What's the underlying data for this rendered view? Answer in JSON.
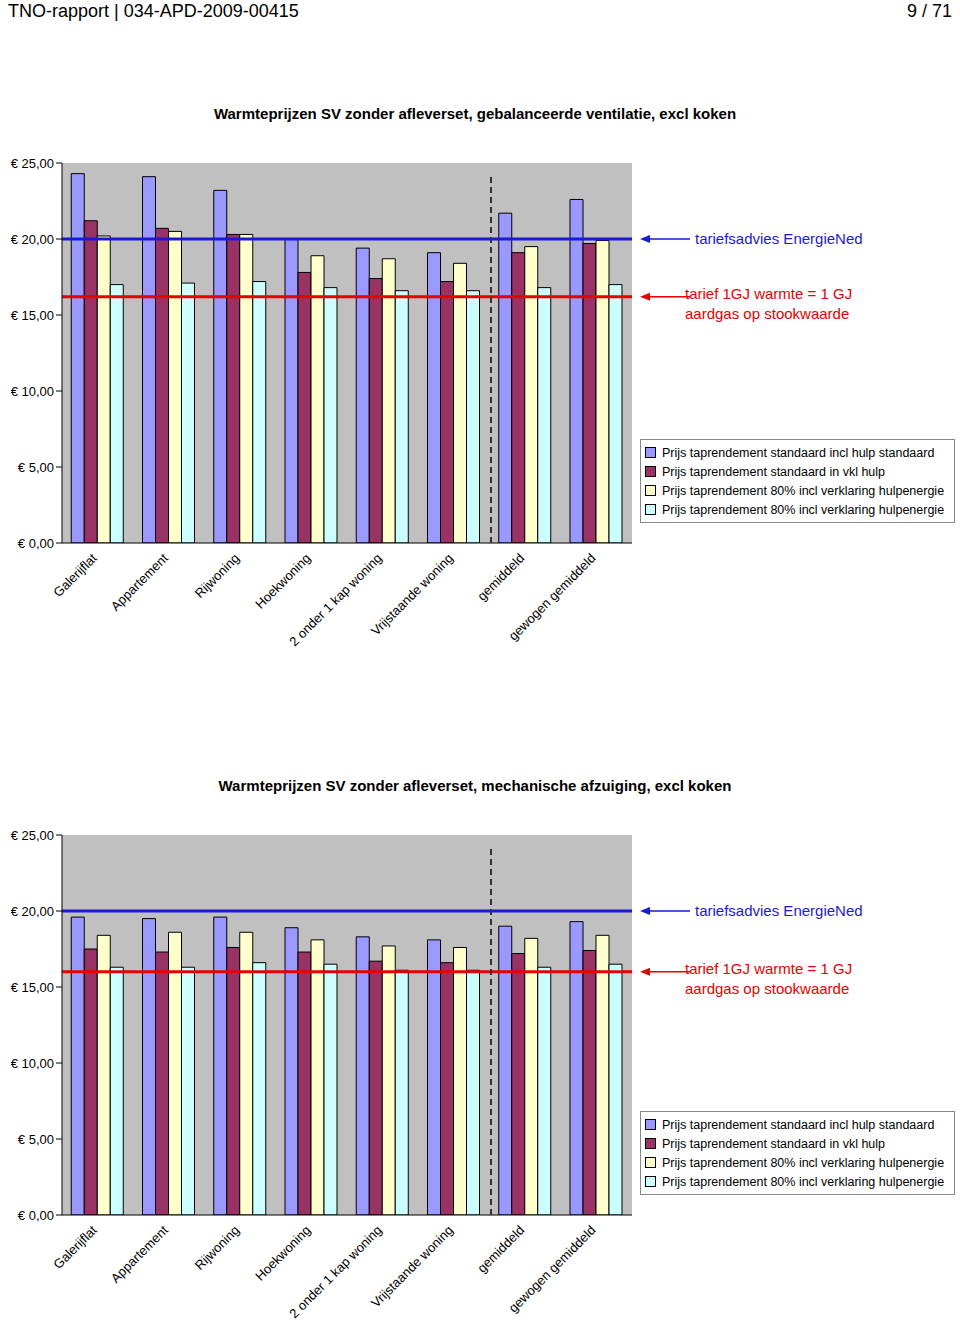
{
  "header": {
    "report": "TNO-rapport | 034-APD-2009-00415",
    "page": "9 / 71"
  },
  "chart_data": [
    {
      "type": "bar",
      "title": "Warmteprijzen SV zonder afleverset, gebalanceerde ventilatie, excl koken",
      "categories": [
        "Galerijflat",
        "Appartement",
        "Rijwoning",
        "Hoekwoning",
        "2 onder 1 kap woning",
        "Vrijstaande woning",
        "gemiddeld",
        "gewogen gemiddeld"
      ],
      "series": [
        {
          "name": "Prijs taprendement standaard incl hulp standaard",
          "color": "#9999ff",
          "values": [
            24.3,
            24.1,
            23.2,
            20.0,
            19.4,
            19.1,
            21.7,
            22.6
          ]
        },
        {
          "name": "Prijs taprendement standaard in vkl hulp",
          "color": "#993366",
          "values": [
            21.2,
            20.7,
            20.3,
            17.8,
            17.4,
            17.2,
            19.1,
            19.7
          ]
        },
        {
          "name": "Prijs taprendement 80% incl verklaring hulpenergie",
          "color": "#ffffcc",
          "values": [
            20.2,
            20.5,
            20.3,
            18.9,
            18.7,
            18.4,
            19.5,
            19.9
          ]
        },
        {
          "name": "Prijs taprendement 80% incl verklaring hulpenergie",
          "color": "#ccffff",
          "values": [
            17.0,
            17.1,
            17.2,
            16.8,
            16.6,
            16.6,
            16.8,
            17.0
          ]
        }
      ],
      "ylim": [
        0,
        25
      ],
      "yticks": [
        {
          "value": 0,
          "label": "€ 0,00"
        },
        {
          "value": 5,
          "label": "€ 5,00"
        },
        {
          "value": 10,
          "label": "€ 10,00"
        },
        {
          "value": 15,
          "label": "€ 15,00"
        },
        {
          "value": 20,
          "label": "€ 20,00"
        },
        {
          "value": 25,
          "label": "€ 25,00"
        }
      ],
      "grid": false,
      "legend": "right",
      "reference_lines": [
        {
          "label": "tariefsadvies EnergieNed",
          "value": 20.0,
          "color": "#1a1ad6"
        },
        {
          "label": "tarief 1GJ warmte = 1 GJ\naardgas op stookwaarde",
          "value": 16.2,
          "color": "#e60000"
        }
      ]
    },
    {
      "type": "bar",
      "title": "Warmteprijzen SV zonder afleverset, mechanische afzuiging, excl koken",
      "categories": [
        "Galerijflat",
        "Appartement",
        "Rijwoning",
        "Hoekwoning",
        "2 onder 1 kap woning",
        "Vrijstaande woning",
        "gemiddeld",
        "gewogen gemiddeld"
      ],
      "series": [
        {
          "name": "Prijs taprendement standaard incl hulp standaard",
          "color": "#9999ff",
          "values": [
            19.6,
            19.5,
            19.6,
            18.9,
            18.3,
            18.1,
            19.0,
            19.3
          ]
        },
        {
          "name": "Prijs taprendement standaard in vkl hulp",
          "color": "#993366",
          "values": [
            17.5,
            17.3,
            17.6,
            17.3,
            16.7,
            16.6,
            17.2,
            17.4
          ]
        },
        {
          "name": "Prijs taprendement 80% incl verklaring hulpenergie",
          "color": "#ffffcc",
          "values": [
            18.4,
            18.6,
            18.6,
            18.1,
            17.7,
            17.6,
            18.2,
            18.4
          ]
        },
        {
          "name": "Prijs taprendement 80% incl verklaring hulpenergie",
          "color": "#ccffff",
          "values": [
            16.3,
            16.3,
            16.6,
            16.5,
            16.1,
            16.1,
            16.3,
            16.5
          ]
        }
      ],
      "ylim": [
        0,
        25
      ],
      "yticks": [
        {
          "value": 0,
          "label": "€ 0,00"
        },
        {
          "value": 5,
          "label": "€ 5,00"
        },
        {
          "value": 10,
          "label": "€ 10,00"
        },
        {
          "value": 15,
          "label": "€ 15,00"
        },
        {
          "value": 20,
          "label": "€ 20,00"
        },
        {
          "value": 25,
          "label": "€ 25,00"
        }
      ],
      "grid": false,
      "legend": "right",
      "reference_lines": [
        {
          "label": "tariefsadvies EnergieNed",
          "value": 20.0,
          "color": "#1a1ad6"
        },
        {
          "label": "tarief 1GJ warmte = 1 GJ\naardgas op stookwaarde",
          "value": 16.0,
          "color": "#e60000"
        }
      ]
    }
  ]
}
